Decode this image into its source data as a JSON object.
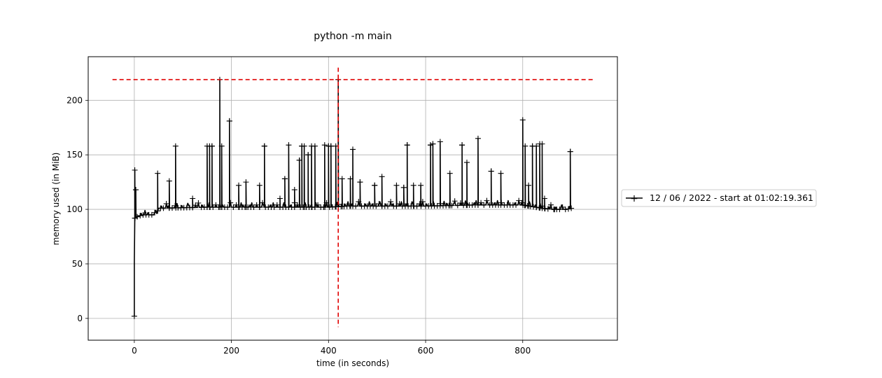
{
  "chart_data": {
    "type": "line",
    "title": "python -m main",
    "xlabel": "time (in seconds)",
    "ylabel": "memory used (in MiB)",
    "xlim": [
      -95,
      995
    ],
    "ylim": [
      -20,
      240
    ],
    "x_ticks": [
      0,
      200,
      400,
      600,
      800
    ],
    "y_ticks": [
      0,
      50,
      100,
      150,
      200
    ],
    "grid": true,
    "legend_position": "right",
    "colors": {
      "series": "#000000",
      "marker_lines": "#e00000",
      "grid": "#b0b0b0"
    },
    "series": [
      {
        "name": "12 / 06 / 2022 - start at 01:02:19.361",
        "baseline": [
          [
            0,
            2
          ],
          [
            0,
            33
          ],
          [
            0,
            52
          ],
          [
            1,
            92
          ],
          [
            5,
            93
          ],
          [
            10,
            94
          ],
          [
            20,
            95
          ],
          [
            35,
            95
          ],
          [
            45,
            95
          ],
          [
            50,
            101
          ],
          [
            150,
            102
          ],
          [
            300,
            102
          ],
          [
            350,
            102
          ],
          [
            400,
            102
          ],
          [
            440,
            103
          ],
          [
            600,
            103
          ],
          [
            700,
            104
          ],
          [
            780,
            104
          ],
          [
            800,
            104
          ],
          [
            840,
            101
          ],
          [
            860,
            100
          ],
          [
            890,
            100
          ],
          [
            900,
            101
          ]
        ],
        "spikes": [
          [
            1,
            136
          ],
          [
            3,
            118
          ],
          [
            48,
            133
          ],
          [
            72,
            126
          ],
          [
            85,
            158
          ],
          [
            120,
            110
          ],
          [
            150,
            158
          ],
          [
            155,
            158
          ],
          [
            160,
            158
          ],
          [
            176,
            219
          ],
          [
            180,
            158
          ],
          [
            196,
            181
          ],
          [
            215,
            122
          ],
          [
            230,
            125
          ],
          [
            258,
            122
          ],
          [
            268,
            158
          ],
          [
            300,
            110
          ],
          [
            310,
            128
          ],
          [
            318,
            159
          ],
          [
            330,
            118
          ],
          [
            340,
            145
          ],
          [
            345,
            158
          ],
          [
            350,
            158
          ],
          [
            358,
            150
          ],
          [
            365,
            158
          ],
          [
            372,
            158
          ],
          [
            392,
            159
          ],
          [
            400,
            158
          ],
          [
            405,
            158
          ],
          [
            415,
            158
          ],
          [
            420,
            219
          ],
          [
            428,
            128
          ],
          [
            445,
            128
          ],
          [
            450,
            155
          ],
          [
            465,
            125
          ],
          [
            495,
            122
          ],
          [
            510,
            130
          ],
          [
            540,
            122
          ],
          [
            555,
            120
          ],
          [
            562,
            159
          ],
          [
            575,
            122
          ],
          [
            590,
            122
          ],
          [
            610,
            159
          ],
          [
            615,
            160
          ],
          [
            630,
            162
          ],
          [
            650,
            133
          ],
          [
            675,
            159
          ],
          [
            685,
            143
          ],
          [
            708,
            165
          ],
          [
            735,
            135
          ],
          [
            755,
            133
          ],
          [
            800,
            182
          ],
          [
            805,
            158
          ],
          [
            812,
            122
          ],
          [
            820,
            158
          ],
          [
            828,
            158
          ],
          [
            835,
            160
          ],
          [
            840,
            160
          ],
          [
            845,
            110
          ],
          [
            865,
            100
          ],
          [
            898,
            153
          ]
        ]
      }
    ],
    "reference_lines": [
      {
        "orientation": "horizontal",
        "y": 219,
        "x_range": [
          -45,
          945
        ],
        "color": "#e00000",
        "style": "dashed"
      },
      {
        "orientation": "vertical",
        "x": 420,
        "y_range": [
          -8,
          230
        ],
        "color": "#e00000",
        "style": "dashed"
      }
    ]
  }
}
